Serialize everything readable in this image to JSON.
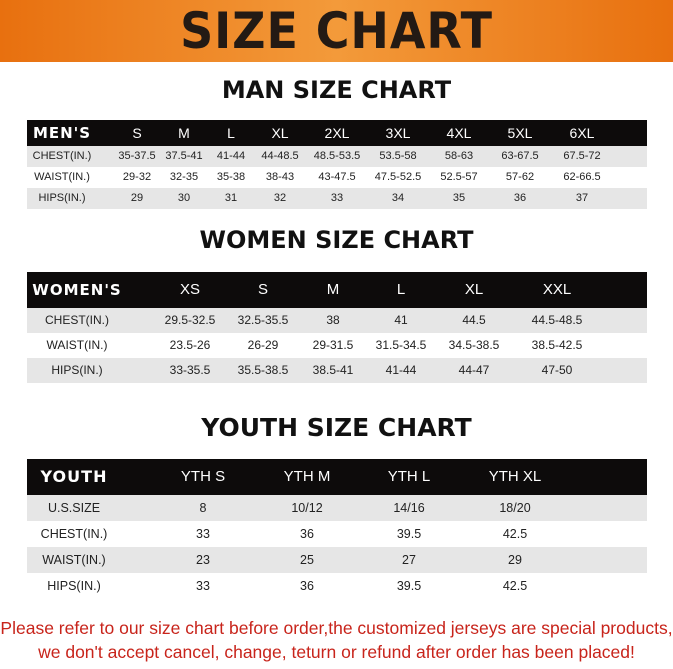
{
  "title": "SIZE CHART",
  "colors": {
    "banner": "#e8700f",
    "header_bar": "#0d0b0b",
    "stripe": "#e6e6e6",
    "notice": "#c8241b"
  },
  "men": {
    "title": "MAN SIZE CHART",
    "headers": [
      "MEN'S",
      "S",
      "M",
      "L",
      "XL",
      "2XL",
      "3XL",
      "4XL",
      "5XL",
      "6XL"
    ],
    "rows": [
      [
        "CHEST(IN.)",
        "35-37.5",
        "37.5-41",
        "41-44",
        "44-48.5",
        "48.5-53.5",
        "53.5-58",
        "58-63",
        "63-67.5",
        "67.5-72"
      ],
      [
        "WAIST(IN.)",
        "29-32",
        "32-35",
        "35-38",
        "38-43",
        "43-47.5",
        "47.5-52.5",
        "52.5-57",
        "57-62",
        "62-66.5"
      ],
      [
        "HIPS(IN.)",
        "29",
        "30",
        "31",
        "32",
        "33",
        "34",
        "35",
        "36",
        "37"
      ]
    ]
  },
  "women": {
    "title": "WOMEN SIZE CHART",
    "headers": [
      "WOMEN'S",
      "XS",
      "S",
      "M",
      "L",
      "XL",
      "XXL"
    ],
    "rows": [
      [
        "CHEST(IN.)",
        "29.5-32.5",
        "32.5-35.5",
        "38",
        "41",
        "44.5",
        "44.5-48.5"
      ],
      [
        "WAIST(IN.)",
        "23.5-26",
        "26-29",
        "29-31.5",
        "31.5-34.5",
        "34.5-38.5",
        "38.5-42.5"
      ],
      [
        "HIPS(IN.)",
        "33-35.5",
        "35.5-38.5",
        "38.5-41",
        "41-44",
        "44-47",
        "47-50"
      ]
    ]
  },
  "youth": {
    "title": "YOUTH SIZE CHART",
    "headers": [
      "YOUTH",
      "YTH S",
      "YTH M",
      "YTH L",
      "YTH XL"
    ],
    "rows": [
      [
        "U.S.SIZE",
        "8",
        "10/12",
        "14/16",
        "18/20"
      ],
      [
        "CHEST(IN.)",
        "33",
        "36",
        "39.5",
        "42.5"
      ],
      [
        "WAIST(IN.)",
        "23",
        "25",
        "27",
        "29"
      ],
      [
        "HIPS(IN.)",
        "33",
        "36",
        "39.5",
        "42.5"
      ]
    ]
  },
  "notice": {
    "line1": "Please refer to our size chart before order,the customized jerseys are special products,",
    "line2": "we don't accept cancel, change, teturn or refund after order has been placed!"
  }
}
